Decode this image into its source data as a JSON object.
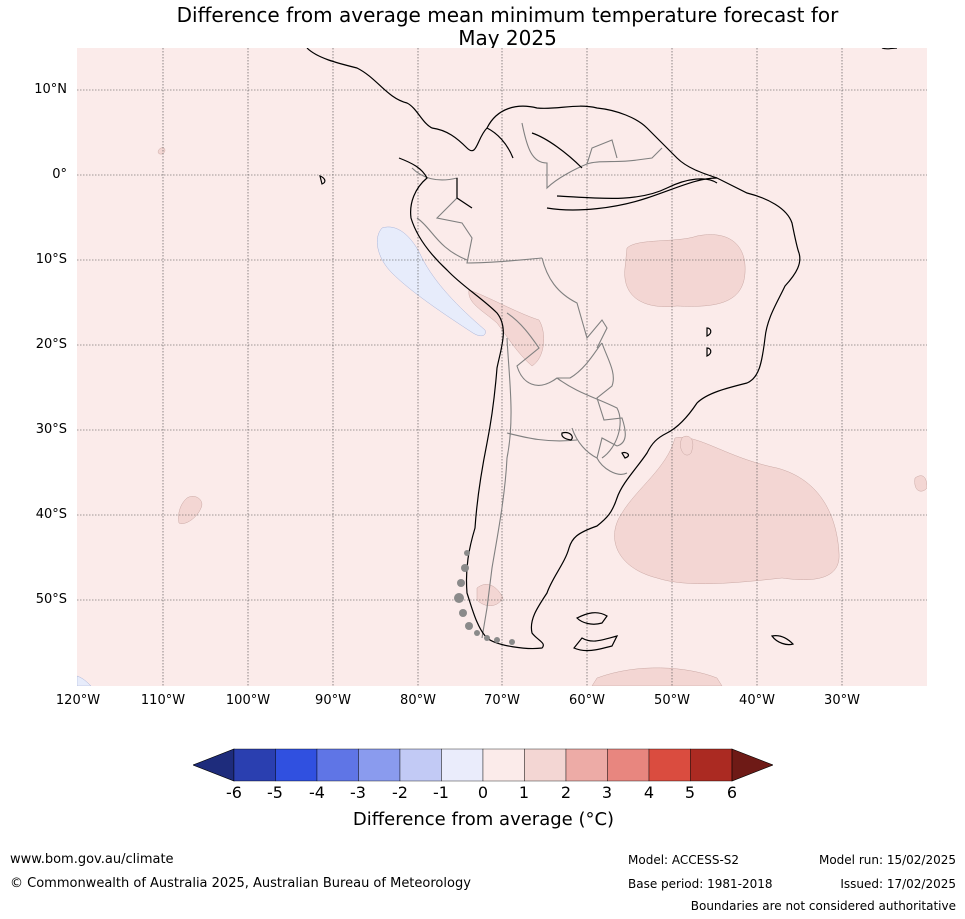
{
  "title": {
    "line1": "Difference from average mean minimum temperature forecast for",
    "line2": "May 2025"
  },
  "map": {
    "lat_ticks": [
      "10°N",
      "0°",
      "10°S",
      "20°S",
      "30°S",
      "40°S",
      "50°S"
    ],
    "lon_ticks": [
      "120°W",
      "110°W",
      "100°W",
      "90°W",
      "80°W",
      "70°W",
      "60°W",
      "50°W",
      "40°W",
      "30°W"
    ],
    "background_color": "#fbebea",
    "anomaly_1_2_color": "#f3d6d3",
    "anomaly_minus1_0_color": "#e7ecfb",
    "coastline_color": "#000000",
    "border_color": "#808080"
  },
  "colorbar": {
    "ticks": [
      "-6",
      "-5",
      "-4",
      "-3",
      "-2",
      "-1",
      "0",
      "1",
      "2",
      "3",
      "4",
      "5",
      "6"
    ],
    "colors": [
      "#1e2c7c",
      "#2a3fb0",
      "#3050e0",
      "#5f75e6",
      "#8a9bee",
      "#c2caf5",
      "#eaecfb",
      "#fbebea",
      "#f3d6d3",
      "#edaba6",
      "#e8867f",
      "#da4c3f",
      "#ab2a22",
      "#6e1a16"
    ],
    "label": "Difference from average (°C)"
  },
  "footer": {
    "url": "www.bom.gov.au/climate",
    "copyright": "© Commonwealth of Australia 2025, Australian Bureau of Meteorology",
    "model": "Model: ACCESS-S2",
    "base_period": "Base period: 1981-2018",
    "model_run": "Model run: 15/02/2025",
    "issued": "Issued: 17/02/2025",
    "disclaimer": "Boundaries are not considered authoritative"
  }
}
